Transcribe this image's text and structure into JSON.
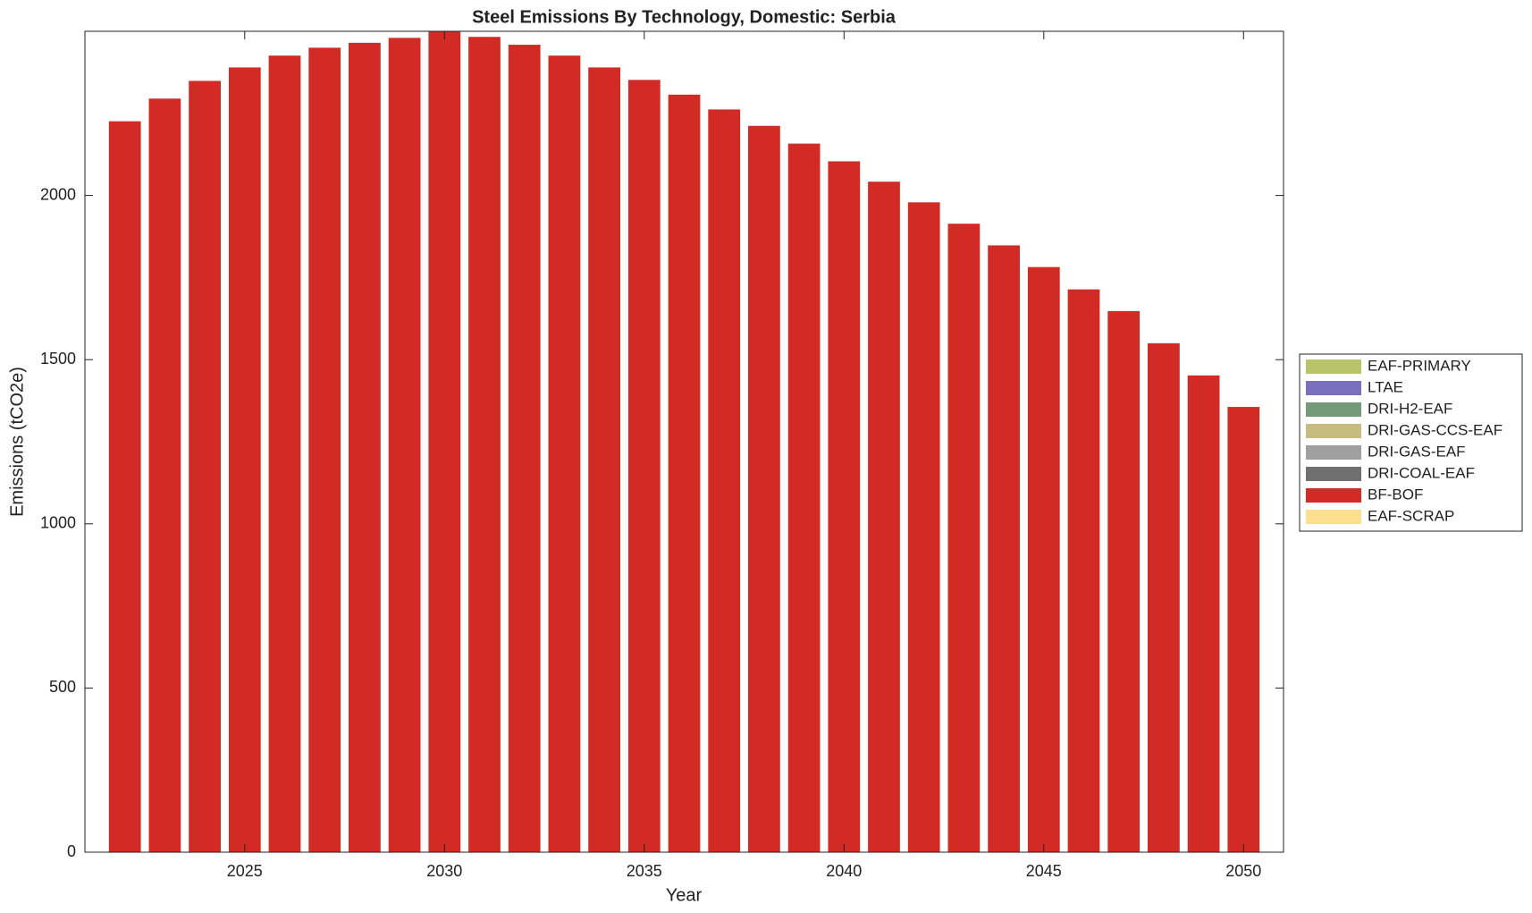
{
  "chart_data": {
    "type": "bar",
    "stacked": true,
    "title": "Steel Emissions By Technology, Domestic: Serbia",
    "xlabel": "Year",
    "ylabel": "Emissions (tCO2e)",
    "x": [
      2022,
      2023,
      2024,
      2025,
      2026,
      2027,
      2028,
      2029,
      2030,
      2031,
      2032,
      2033,
      2034,
      2035,
      2036,
      2037,
      2038,
      2039,
      2040,
      2041,
      2042,
      2043,
      2044,
      2045,
      2046,
      2047,
      2048,
      2049,
      2050
    ],
    "xlim": [
      2021,
      2051
    ],
    "xticks": [
      2025,
      2030,
      2035,
      2040,
      2045,
      2050
    ],
    "ylim": [
      0,
      2500
    ],
    "yticks": [
      0,
      500,
      1000,
      1500,
      2000
    ],
    "legend_position": "right",
    "series": [
      {
        "name": "EAF-PRIMARY",
        "color": "#b9c36a",
        "values": [
          0,
          0,
          0,
          0,
          0,
          0,
          0,
          0,
          0,
          0,
          0,
          0,
          0,
          0,
          0,
          0,
          0,
          0,
          0,
          0,
          0,
          0,
          0,
          0,
          0,
          0,
          0,
          0,
          0
        ]
      },
      {
        "name": "LTAE",
        "color": "#7a6fbf",
        "values": [
          0,
          0,
          0,
          0,
          0,
          0,
          0,
          0,
          0,
          0,
          0,
          0,
          0,
          0,
          0,
          0,
          0,
          0,
          0,
          0,
          0,
          0,
          0,
          0,
          0,
          0,
          0,
          0,
          0
        ]
      },
      {
        "name": "DRI-H2-EAF",
        "color": "#73987a",
        "values": [
          0,
          0,
          0,
          0,
          0,
          0,
          0,
          0,
          0,
          0,
          0,
          0,
          0,
          0,
          0,
          0,
          0,
          0,
          0,
          0,
          0,
          0,
          0,
          0,
          0,
          0,
          0,
          0,
          0
        ]
      },
      {
        "name": "DRI-GAS-CCS-EAF",
        "color": "#c6bc80",
        "values": [
          0,
          0,
          0,
          0,
          0,
          0,
          0,
          0,
          0,
          0,
          0,
          0,
          0,
          0,
          0,
          0,
          0,
          0,
          0,
          0,
          0,
          0,
          0,
          0,
          0,
          0,
          0,
          0,
          0
        ]
      },
      {
        "name": "DRI-GAS-EAF",
        "color": "#a0a0a0",
        "values": [
          0,
          0,
          0,
          0,
          0,
          0,
          0,
          0,
          0,
          0,
          0,
          0,
          0,
          0,
          0,
          0,
          0,
          0,
          0,
          0,
          0,
          0,
          0,
          0,
          0,
          0,
          0,
          0,
          0
        ]
      },
      {
        "name": "DRI-COAL-EAF",
        "color": "#707070",
        "values": [
          0,
          0,
          0,
          0,
          0,
          0,
          0,
          0,
          0,
          0,
          0,
          0,
          0,
          0,
          0,
          0,
          0,
          0,
          0,
          0,
          0,
          0,
          0,
          0,
          0,
          0,
          0,
          0,
          0
        ]
      },
      {
        "name": "BF-BOF",
        "color": "#d22b26",
        "values": [
          2226,
          2295,
          2349,
          2390,
          2426,
          2450,
          2465,
          2480,
          2505,
          2483,
          2459,
          2426,
          2390,
          2352,
          2307,
          2262,
          2212,
          2158,
          2104,
          2042,
          1979,
          1914,
          1848,
          1782,
          1714,
          1648,
          1550,
          1452,
          1356
        ]
      },
      {
        "name": "EAF-SCRAP",
        "color": "#fde08f",
        "values": [
          0,
          0,
          0,
          0,
          0,
          0,
          0,
          0,
          0,
          0,
          0,
          0,
          0,
          0,
          0,
          0,
          0,
          0,
          0,
          0,
          0,
          0,
          0,
          0,
          0,
          0,
          0,
          0,
          0
        ]
      }
    ]
  }
}
